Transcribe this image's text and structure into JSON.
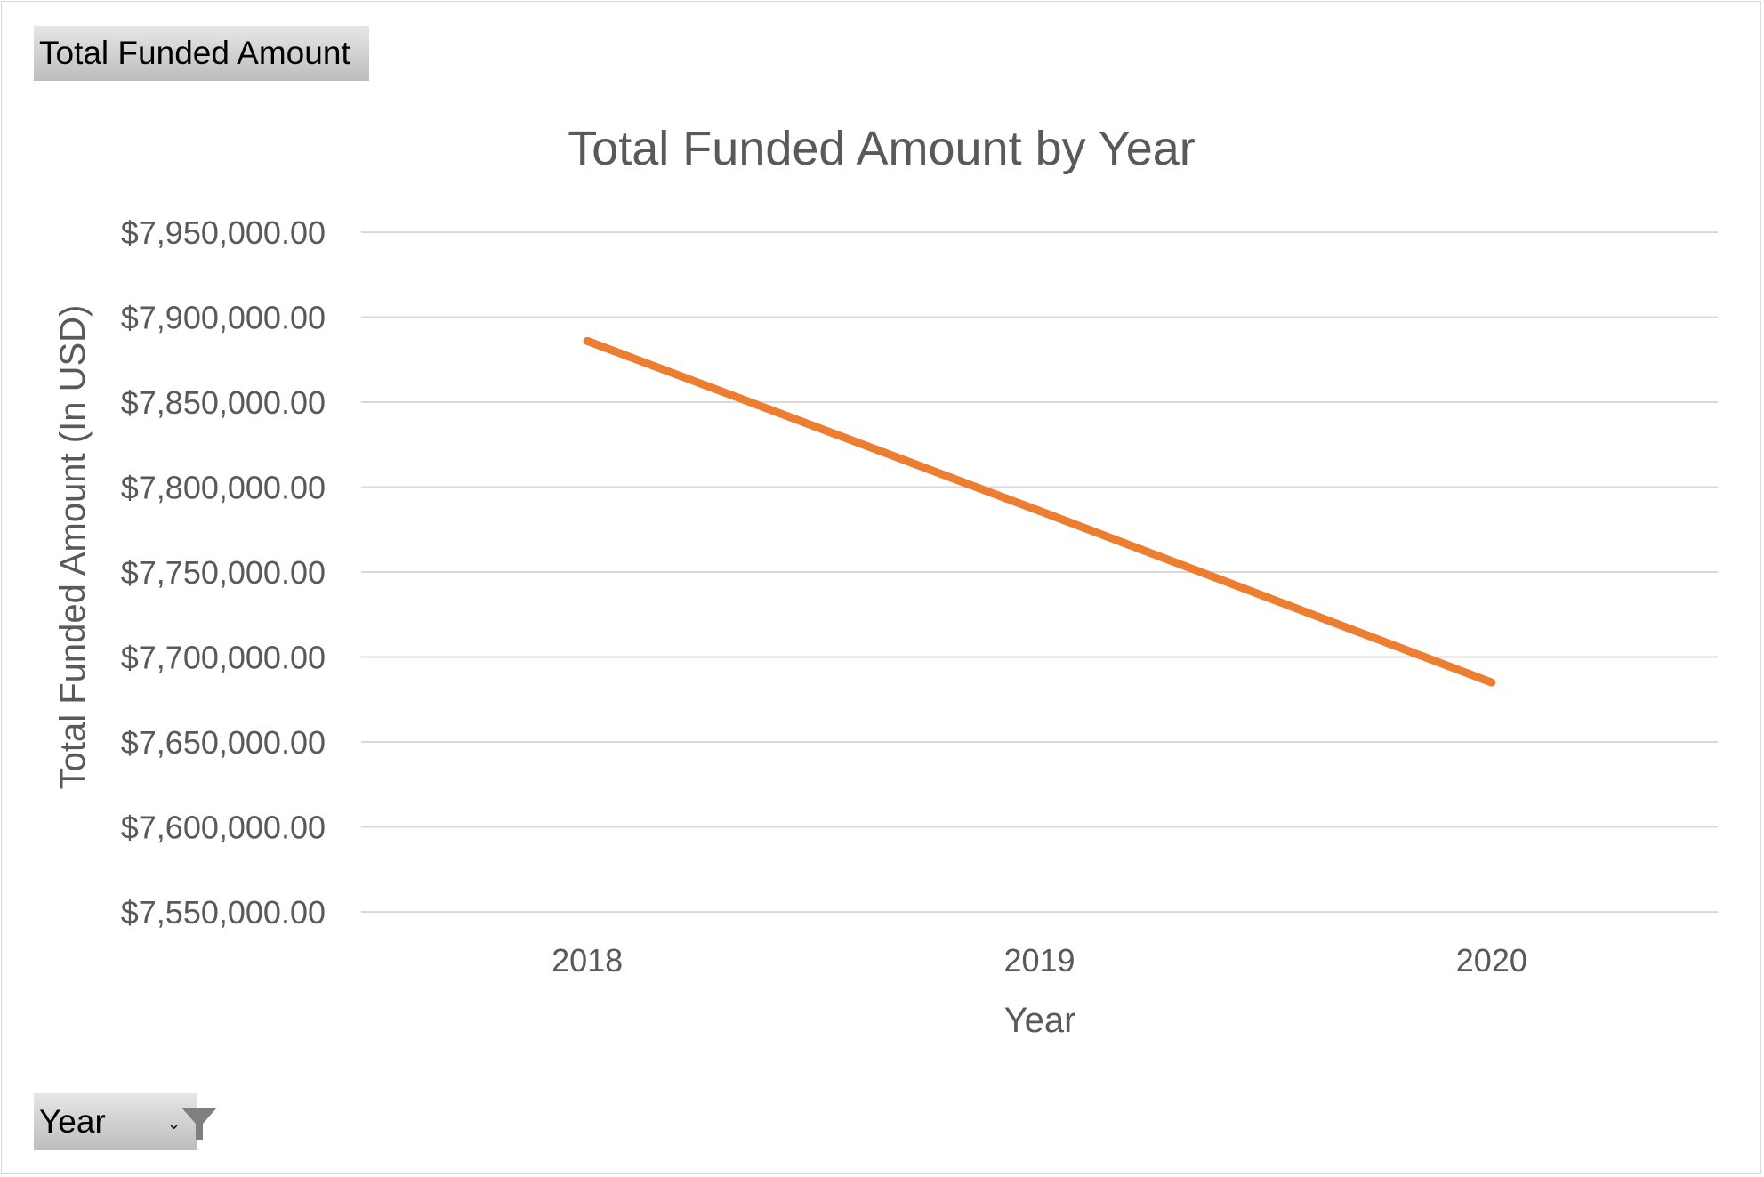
{
  "field_buttons": {
    "value_field": "Total Funded Amount",
    "axis_field": "Year"
  },
  "icons": {
    "filter": "funnel-icon",
    "dropdown": "dropdown-arrow-icon"
  },
  "colors": {
    "line": "#ed7d31",
    "grid": "#d9d9d9",
    "text": "#595959"
  },
  "chart_data": {
    "type": "line",
    "title": "Total Funded Amount by Year",
    "xlabel": "Year",
    "ylabel": "Total Funded Amount (In USD)",
    "categories": [
      "2018",
      "2019",
      "2020"
    ],
    "series": [
      {
        "values": [
          7886000,
          7786000,
          7685000
        ]
      }
    ],
    "ylim": [
      7550000,
      7950000
    ],
    "yticks": [
      7550000,
      7600000,
      7650000,
      7700000,
      7750000,
      7800000,
      7850000,
      7900000,
      7950000
    ],
    "ytick_labels": [
      "$7,550,000.00",
      "$7,600,000.00",
      "$7,650,000.00",
      "$7,700,000.00",
      "$7,750,000.00",
      "$7,800,000.00",
      "$7,850,000.00",
      "$7,900,000.00",
      "$7,950,000.00"
    ],
    "grid": true,
    "legend": "none"
  }
}
